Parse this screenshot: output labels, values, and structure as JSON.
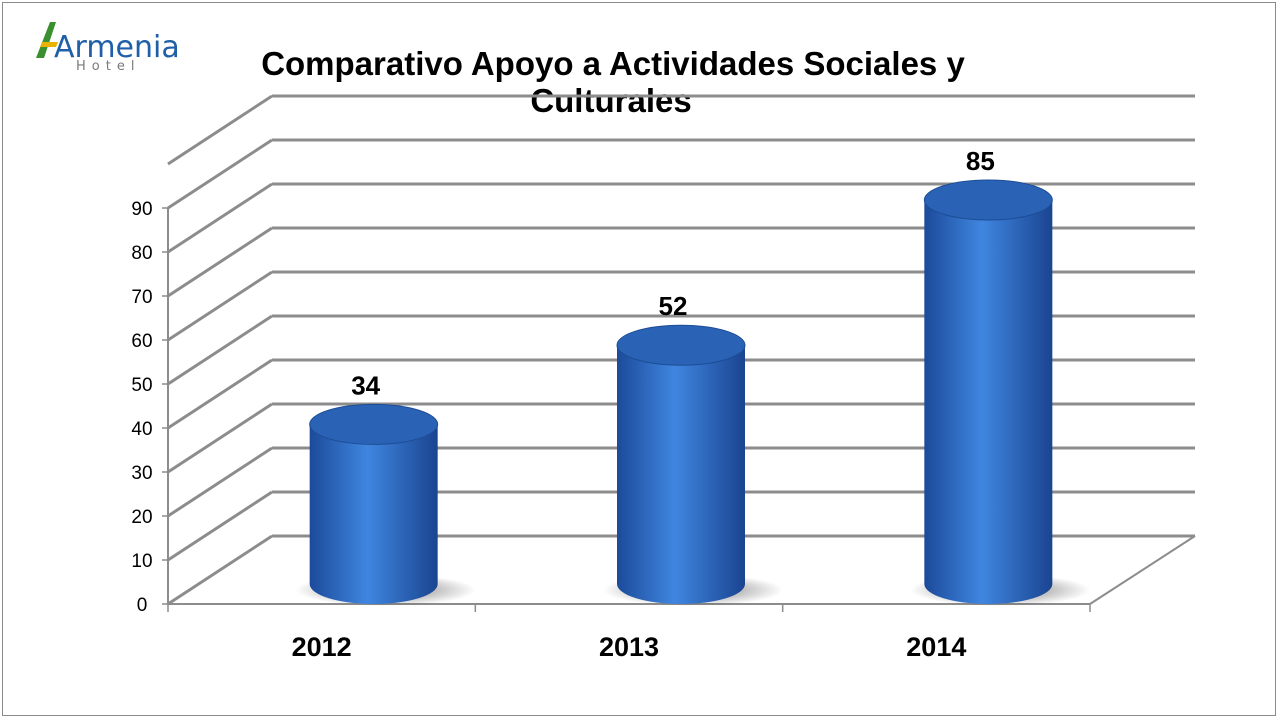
{
  "logo": {
    "word": "Armenia",
    "sub": "Hotel"
  },
  "chart_data": {
    "type": "bar",
    "title_lines": [
      "Comparativo Apoyo a Actividades Sociales y",
      "Culturales"
    ],
    "categories": [
      "2012",
      "2013",
      "2014"
    ],
    "values": [
      34,
      52,
      85
    ],
    "data_labels": [
      "34",
      "52",
      "85"
    ],
    "yticks": [
      "0",
      "10",
      "20",
      "30",
      "40",
      "50",
      "60",
      "70",
      "80",
      "90"
    ],
    "ylim": [
      0,
      100
    ],
    "grid": true,
    "legend": "none",
    "bar_shape": "cylinder",
    "bar_color": "#2f6fc4"
  }
}
